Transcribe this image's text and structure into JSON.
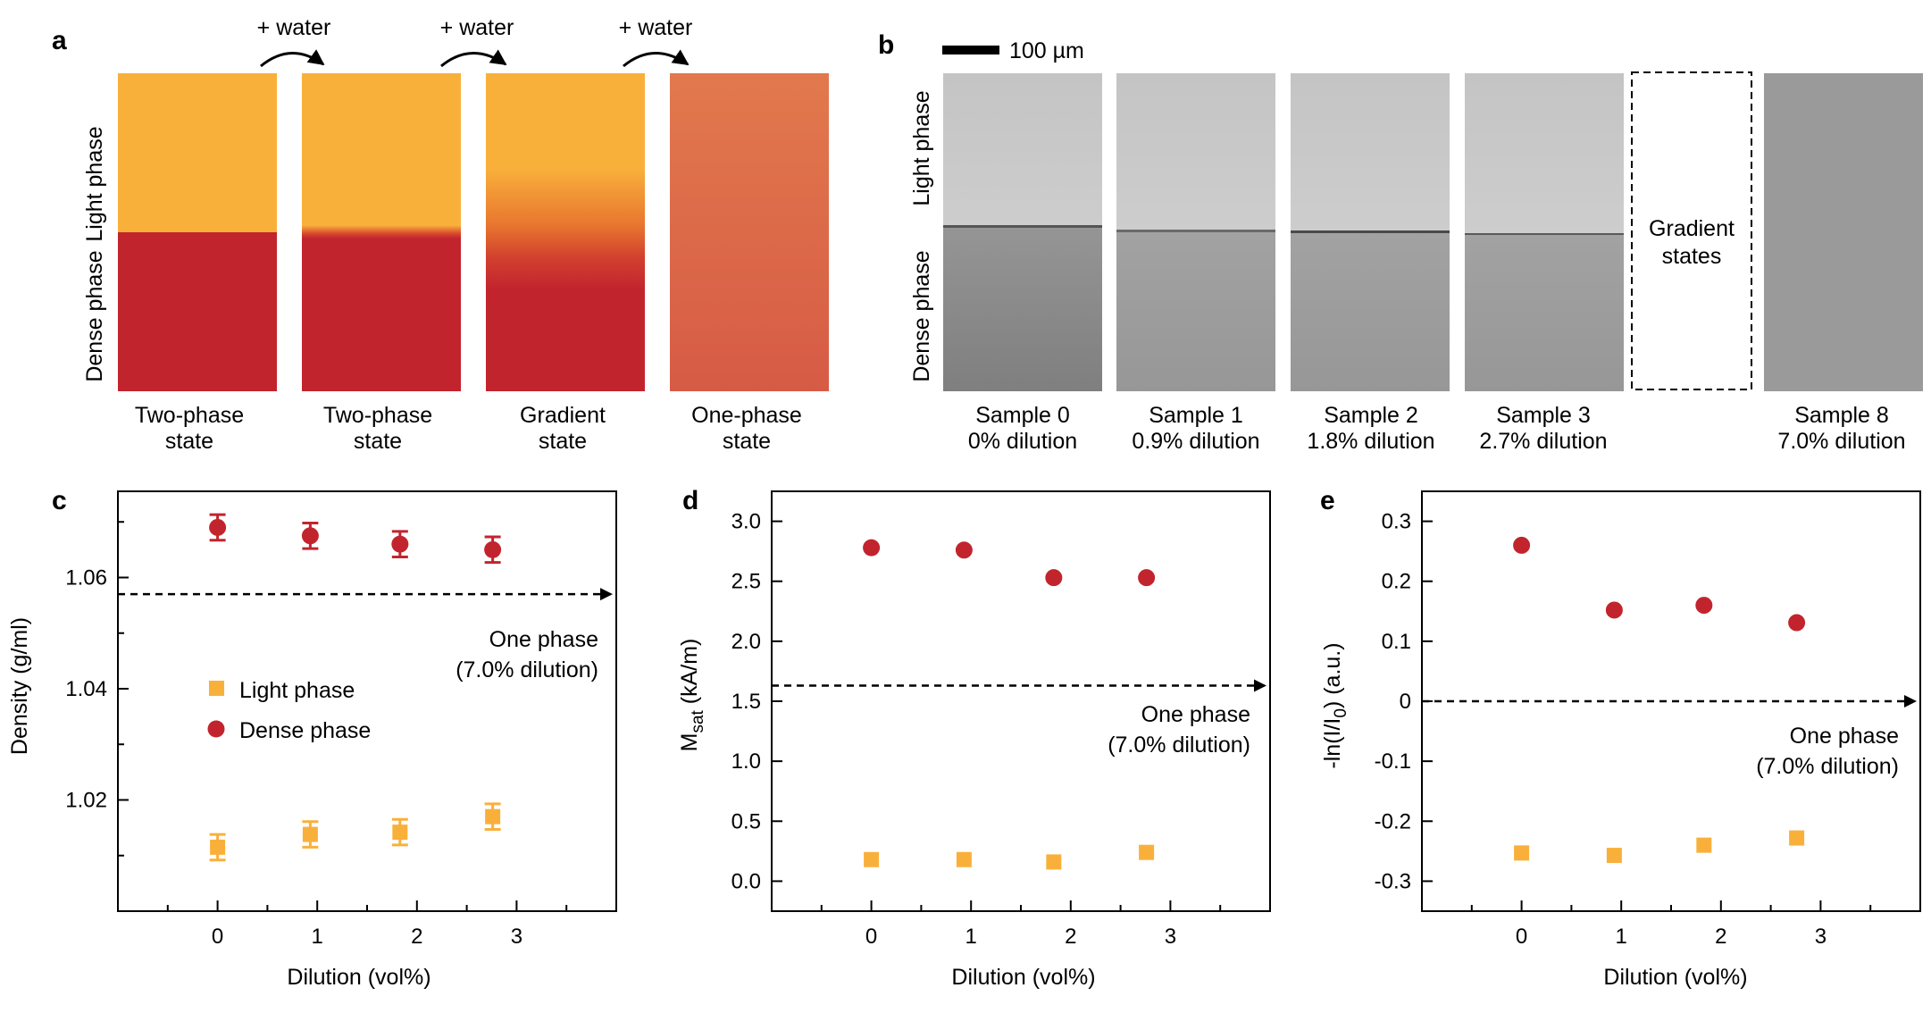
{
  "panel_letters": {
    "a": "a",
    "b": "b",
    "c": "c",
    "d": "d",
    "e": "e"
  },
  "panel_a": {
    "arrow_label": "+ water",
    "y_light": "Light phase",
    "y_dense": "Dense phase",
    "states": [
      {
        "line1": "Two-phase",
        "line2": "state"
      },
      {
        "line1": "Two-phase",
        "line2": "state"
      },
      {
        "line1": "Gradient",
        "line2": "state"
      },
      {
        "line1": "One-phase",
        "line2": "state"
      }
    ],
    "colors": {
      "light": "#F9B03B",
      "dense": "#C2242E",
      "one_top": "#E2794D",
      "one_bottom": "#D65B45"
    }
  },
  "panel_b": {
    "scale_label": "100 µm",
    "y_light": "Light phase",
    "y_dense": "Dense phase",
    "gradient_box_line1": "Gradient",
    "gradient_box_line2": "states",
    "samples": [
      {
        "name": "Sample 0",
        "dilution": "0% dilution"
      },
      {
        "name": "Sample 1",
        "dilution": "0.9% dilution"
      },
      {
        "name": "Sample 2",
        "dilution": "1.8% dilution"
      },
      {
        "name": "Sample 3",
        "dilution": "2.7% dilution"
      },
      {
        "name": "Sample 8",
        "dilution": "7.0% dilution"
      }
    ]
  },
  "chart_data": [
    {
      "panel": "c",
      "type": "scatter",
      "xlabel": "Dilution (vol%)",
      "ylabel": "Density (g/ml)",
      "xlim": [
        -1,
        4
      ],
      "ylim": [
        1.0,
        1.0755
      ],
      "xticks": [
        "0",
        "1",
        "2",
        "3"
      ],
      "yticks": [
        "1.02",
        "1.04",
        "1.06"
      ],
      "legend": {
        "light": "Light phase",
        "dense": "Dense  phase"
      },
      "reference": {
        "value": 1.057,
        "label1": "One phase",
        "label2": "(7.0% dilution)"
      },
      "series": [
        {
          "name": "Light phase",
          "marker": "square",
          "color": "#F9B03B",
          "x": [
            0,
            0.93,
            1.83,
            2.76
          ],
          "y": [
            1.0115,
            1.0138,
            1.0142,
            1.017
          ],
          "err": [
            0.0023,
            0.0023,
            0.0023,
            0.0023
          ]
        },
        {
          "name": "Dense phase",
          "marker": "circle",
          "color": "#C2242E",
          "x": [
            0,
            0.93,
            1.83,
            2.76
          ],
          "y": [
            1.069,
            1.0675,
            1.066,
            1.065
          ],
          "err": [
            0.0023,
            0.0023,
            0.0023,
            0.0023
          ]
        }
      ]
    },
    {
      "panel": "d",
      "type": "scatter",
      "xlabel": "Dilution (vol%)",
      "ylabel": "M",
      "ylabel_sub": "sat",
      "ylabel_unit": " (kA/m)",
      "xlim": [
        -1,
        4
      ],
      "ylim": [
        -0.25,
        3.25
      ],
      "xticks": [
        "0",
        "1",
        "2",
        "3"
      ],
      "yticks": [
        "0.0",
        "0.5",
        "1.0",
        "1.5",
        "2.0",
        "2.5",
        "3.0"
      ],
      "reference": {
        "value": 1.63,
        "label1": "One phase",
        "label2": "(7.0% dilution)"
      },
      "series": [
        {
          "name": "Light phase",
          "marker": "square",
          "color": "#F9B03B",
          "x": [
            0,
            0.93,
            1.83,
            2.76
          ],
          "y": [
            0.18,
            0.18,
            0.16,
            0.24
          ]
        },
        {
          "name": "Dense phase",
          "marker": "circle",
          "color": "#C2242E",
          "x": [
            0,
            0.93,
            1.83,
            2.76
          ],
          "y": [
            2.78,
            2.76,
            2.53,
            2.53
          ]
        }
      ]
    },
    {
      "panel": "e",
      "type": "scatter",
      "xlabel": "Dilution (vol%)",
      "ylabel_pre": "-ln(I/I",
      "ylabel_sub": "0",
      "ylabel_post": ") (a.u.)",
      "xlim": [
        -1,
        4
      ],
      "ylim": [
        -0.35,
        0.35
      ],
      "xticks": [
        "0",
        "1",
        "2",
        "3"
      ],
      "yticks": [
        "0.3",
        "0.2",
        "0.1",
        "0",
        "-0.1",
        "-0.2",
        "-0.3"
      ],
      "reference": {
        "value": 0.0,
        "label1": "One phase",
        "label2": "(7.0% dilution)"
      },
      "series": [
        {
          "name": "Light phase",
          "marker": "square",
          "color": "#F9B03B",
          "x": [
            0,
            0.93,
            1.83,
            2.76
          ],
          "y": [
            -0.253,
            -0.257,
            -0.24,
            -0.228
          ]
        },
        {
          "name": "Dense phase",
          "marker": "circle",
          "color": "#C2242E",
          "x": [
            0,
            0.93,
            1.83,
            2.76
          ],
          "y": [
            0.26,
            0.152,
            0.16,
            0.131
          ]
        }
      ]
    }
  ]
}
